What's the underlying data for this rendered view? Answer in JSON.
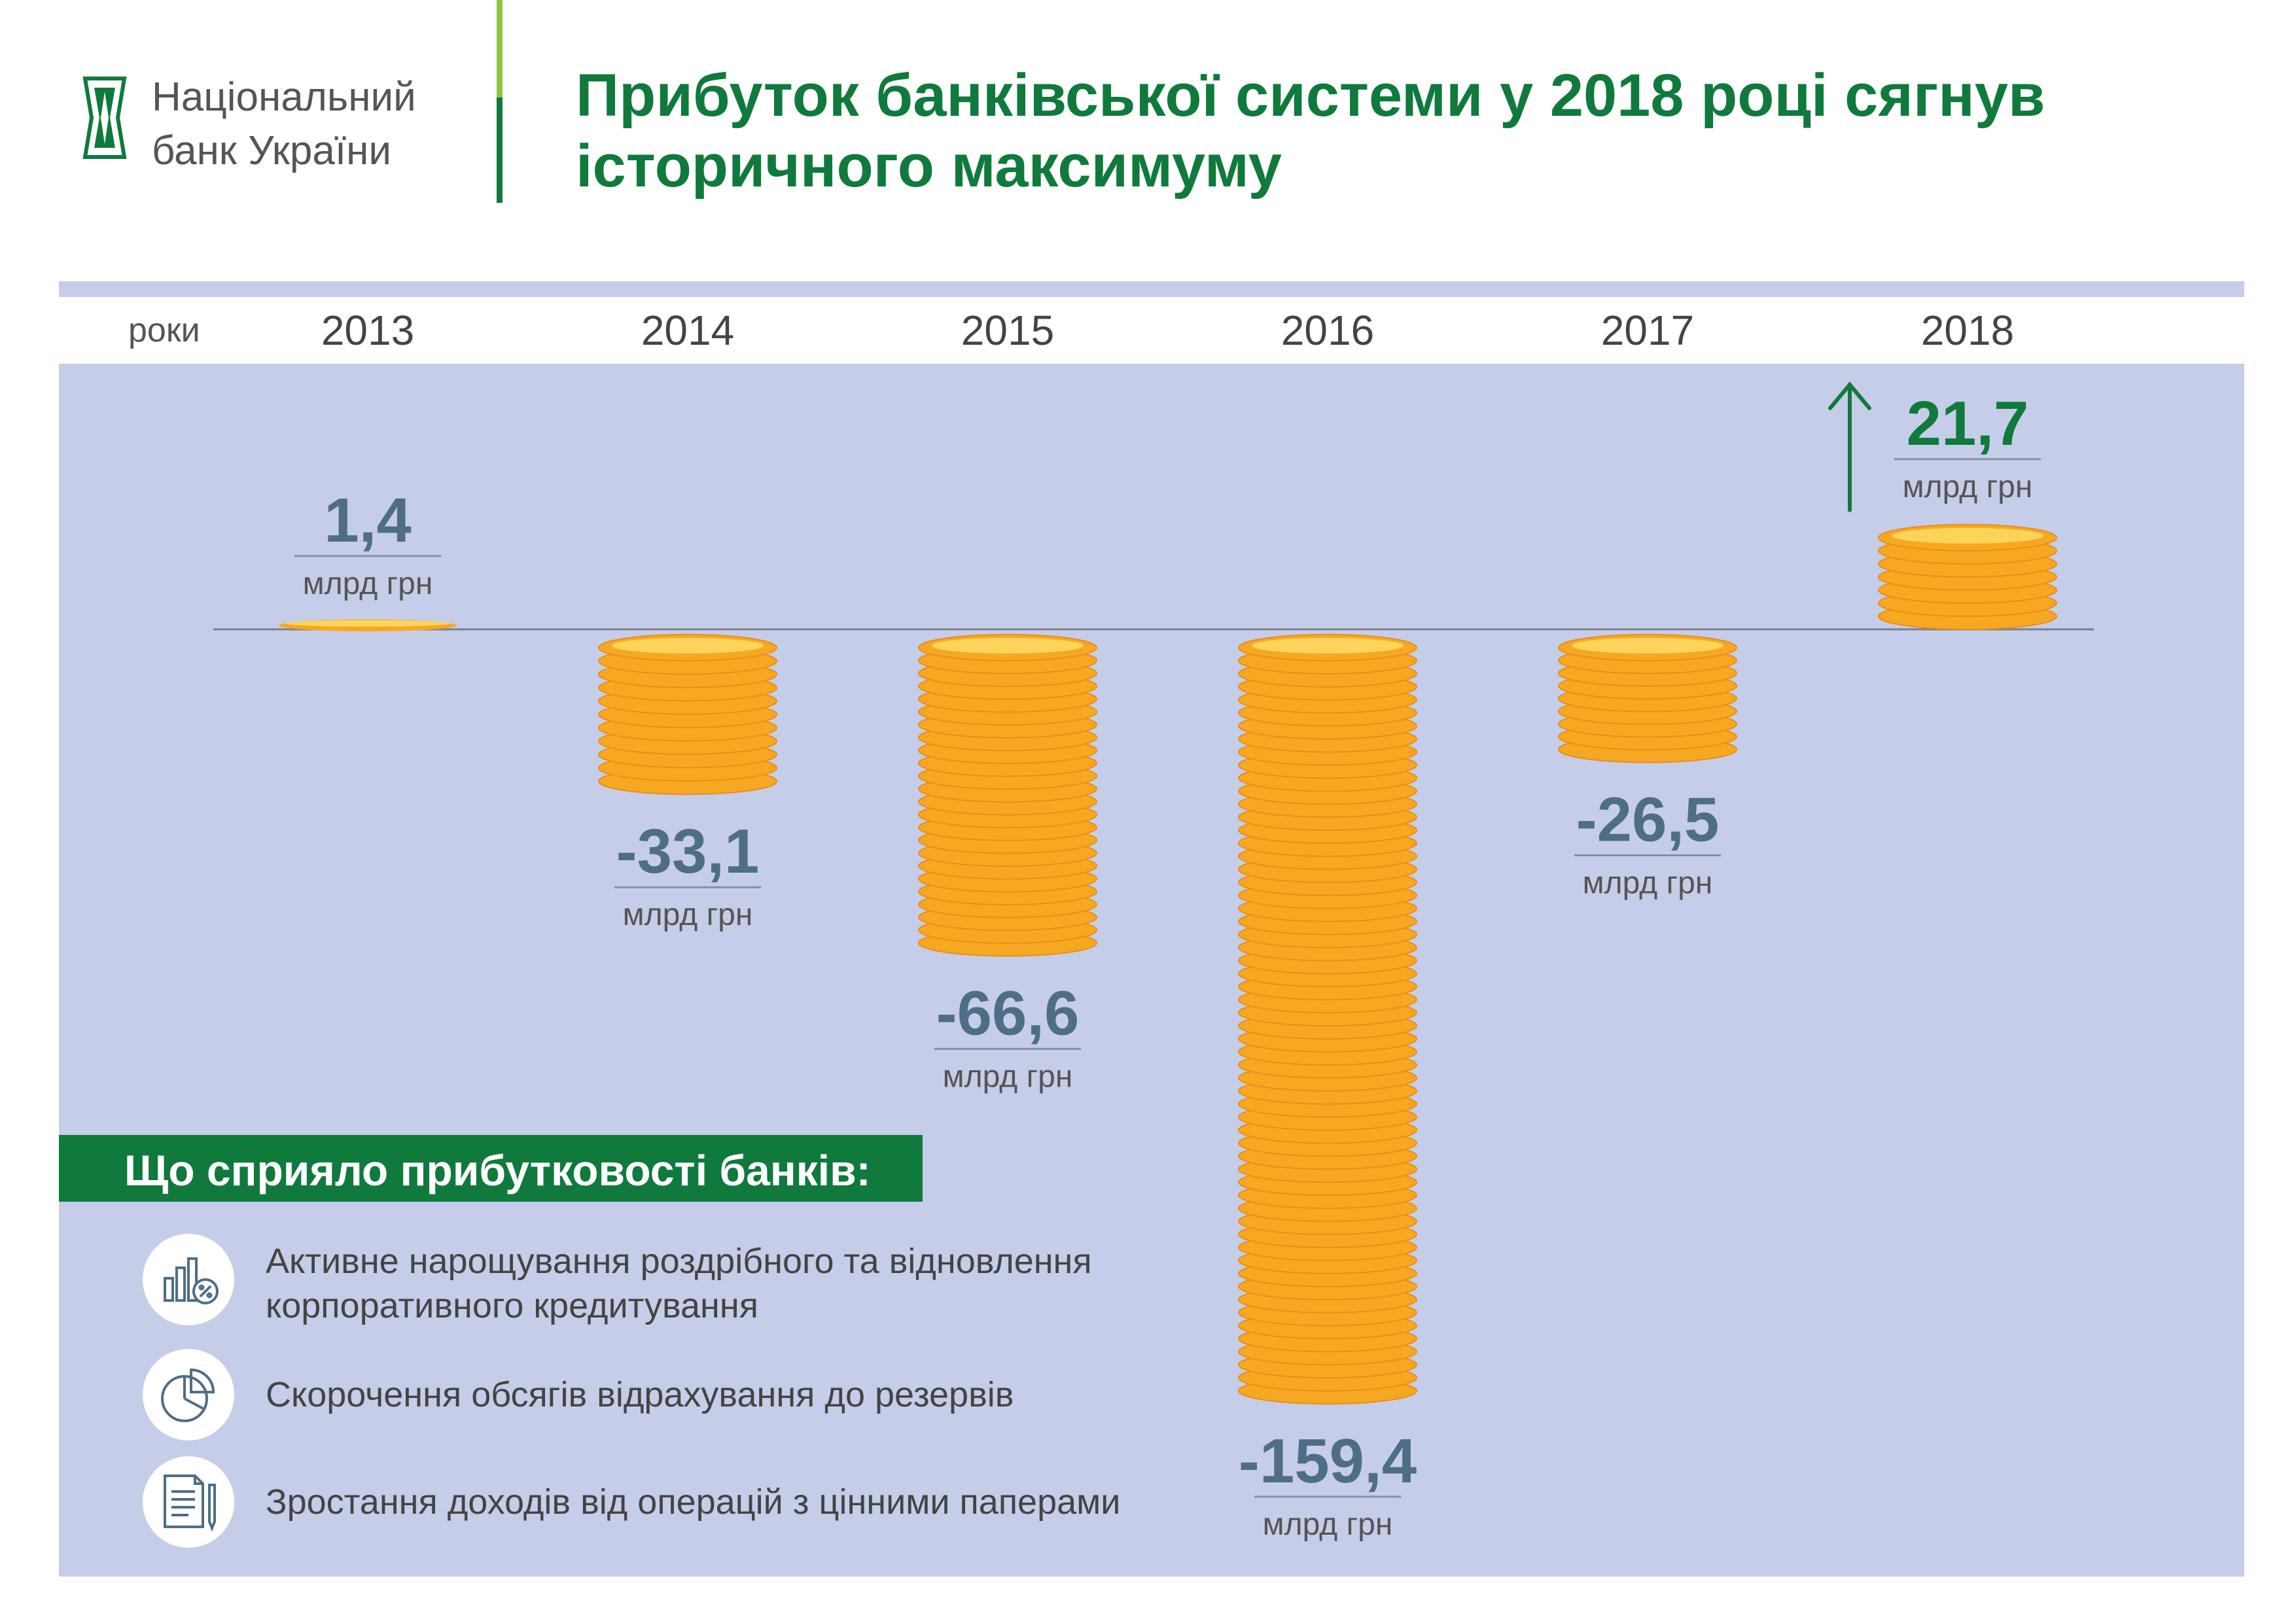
{
  "header": {
    "logo_line1": "Національний",
    "logo_line2": "банк України",
    "title_line1": "Прибуток банківської системи у 2018 році сягнув",
    "title_line2": "історичного максимуму"
  },
  "colors": {
    "green": "#0f7a3c",
    "light_green": "#8dc63f",
    "panel": "#c6cde8",
    "value_text": "#4e6e85",
    "coin": "#f7a823",
    "coin_top": "#fcd45a"
  },
  "chart_data": {
    "type": "bar",
    "xlabel": "роки",
    "categories": [
      "2013",
      "2014",
      "2015",
      "2016",
      "2017",
      "2018"
    ],
    "series": [
      {
        "values": [
          1.4,
          -33.1,
          -66.6,
          -159.4,
          -26.5,
          21.7
        ],
        "labels": [
          "1,4",
          "-33,1",
          "-66,6",
          "-159,4",
          "-26,5",
          "21,7"
        ]
      }
    ],
    "unit": "млрд грн",
    "highlight": "2018"
  },
  "reasons": {
    "title": "Що сприяло прибутковості банків:",
    "items": [
      {
        "icon": "bar-chart-percent-icon",
        "line1": "Активне нарощування роздрібного та відновлення",
        "line2": "корпоративного кредитування"
      },
      {
        "icon": "pie-chart-icon",
        "line1": "Скорочення обсягів відрахування до резервів",
        "line2": ""
      },
      {
        "icon": "document-pen-icon",
        "line1": "Зростання доходів від операцій з цінними паперами",
        "line2": ""
      }
    ]
  }
}
